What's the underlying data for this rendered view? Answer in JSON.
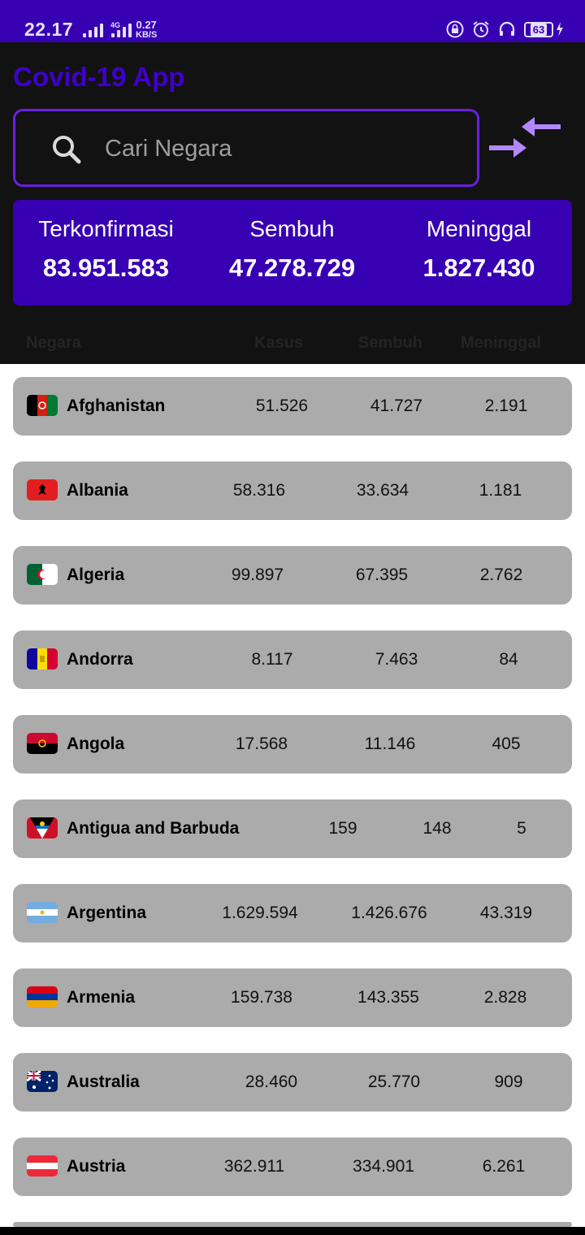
{
  "status_bar": {
    "time": "22.17",
    "network_label": "4G",
    "speed_value": "0.27",
    "speed_unit": "KB/S",
    "battery": "63",
    "icons": [
      "signal-icon",
      "lock-icon",
      "alarm-icon",
      "headphones-icon",
      "battery-icon",
      "charging-icon"
    ]
  },
  "header": {
    "title": "Covid-19 App",
    "search_placeholder": "Cari Negara",
    "search_icon": "search-icon",
    "sort_icon": "swap-arrows-icon"
  },
  "summary": {
    "confirmed_label": "Terkonfirmasi",
    "confirmed_value": "83.951.583",
    "recovered_label": "Sembuh",
    "recovered_value": "47.278.729",
    "deaths_label": "Meninggal",
    "deaths_value": "1.827.430"
  },
  "table": {
    "headers": [
      "Negara",
      "Kasus",
      "Sembuh",
      "Meninggal"
    ],
    "rows": [
      {
        "country": "Afghanistan",
        "cases": "51.526",
        "recovered": "41.727",
        "deaths": "2.191",
        "flag": "afghanistan-flag"
      },
      {
        "country": "Albania",
        "cases": "58.316",
        "recovered": "33.634",
        "deaths": "1.181",
        "flag": "albania-flag"
      },
      {
        "country": "Algeria",
        "cases": "99.897",
        "recovered": "67.395",
        "deaths": "2.762",
        "flag": "algeria-flag"
      },
      {
        "country": "Andorra",
        "cases": "8.117",
        "recovered": "7.463",
        "deaths": "84",
        "flag": "andorra-flag"
      },
      {
        "country": "Angola",
        "cases": "17.568",
        "recovered": "11.146",
        "deaths": "405",
        "flag": "angola-flag"
      },
      {
        "country": "Antigua and Barbuda",
        "cases": "159",
        "recovered": "148",
        "deaths": "5",
        "flag": "antigua-flag"
      },
      {
        "country": "Argentina",
        "cases": "1.629.594",
        "recovered": "1.426.676",
        "deaths": "43.319",
        "flag": "argentina-flag"
      },
      {
        "country": "Armenia",
        "cases": "159.738",
        "recovered": "143.355",
        "deaths": "2.828",
        "flag": "armenia-flag"
      },
      {
        "country": "Australia",
        "cases": "28.460",
        "recovered": "25.770",
        "deaths": "909",
        "flag": "australia-flag"
      },
      {
        "country": "Austria",
        "cases": "362.911",
        "recovered": "334.901",
        "deaths": "6.261",
        "flag": "austria-flag"
      }
    ]
  },
  "colors": {
    "primary": "#3700b3",
    "title": "#3f00cc",
    "accent": "#b388ff",
    "row_background": "#ababab",
    "header_background": "#121212"
  }
}
